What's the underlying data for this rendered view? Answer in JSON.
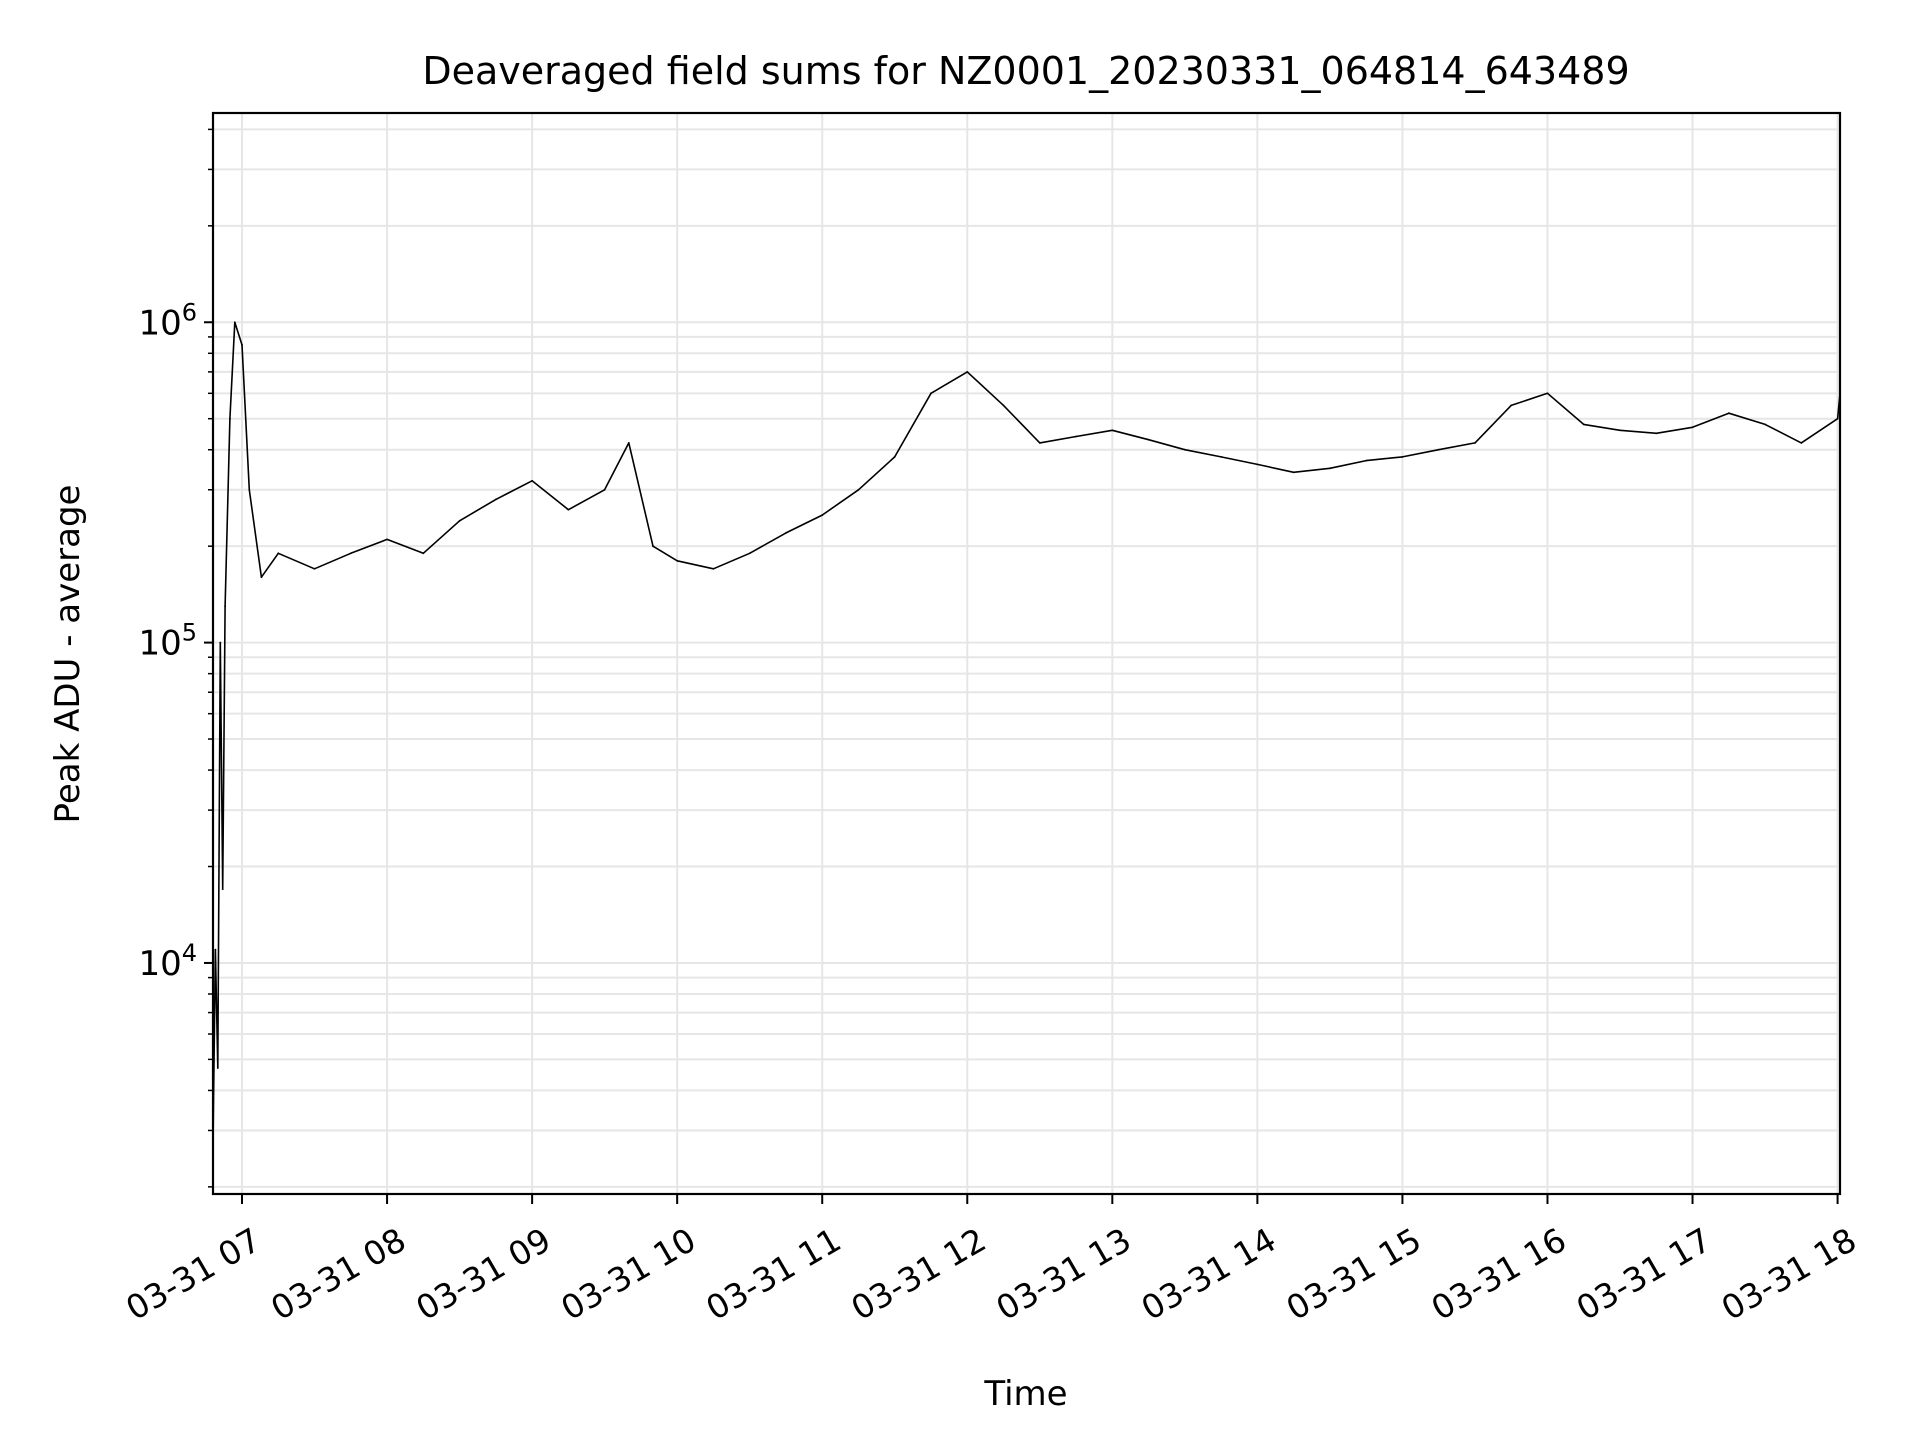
{
  "chart_data": {
    "type": "line",
    "title": "Deaveraged field sums for NZ0001_20230331_064814_643489",
    "xlabel": "Time",
    "ylabel": "Peak ADU - average",
    "y_scale": "log",
    "ylim": [
      1900,
      4500000
    ],
    "xlim": [
      "2023-03-31 06:48",
      "2023-03-31 18:01"
    ],
    "grid": true,
    "line_color": "#000000",
    "grid_color": "#e6e6e6",
    "x_ticks": [
      {
        "value": "2023-03-31 07:00",
        "label": "03-31 07"
      },
      {
        "value": "2023-03-31 08:00",
        "label": "03-31 08"
      },
      {
        "value": "2023-03-31 09:00",
        "label": "03-31 09"
      },
      {
        "value": "2023-03-31 10:00",
        "label": "03-31 10"
      },
      {
        "value": "2023-03-31 11:00",
        "label": "03-31 11"
      },
      {
        "value": "2023-03-31 12:00",
        "label": "03-31 12"
      },
      {
        "value": "2023-03-31 13:00",
        "label": "03-31 13"
      },
      {
        "value": "2023-03-31 14:00",
        "label": "03-31 14"
      },
      {
        "value": "2023-03-31 15:00",
        "label": "03-31 15"
      },
      {
        "value": "2023-03-31 16:00",
        "label": "03-31 16"
      },
      {
        "value": "2023-03-31 17:00",
        "label": "03-31 17"
      },
      {
        "value": "2023-03-31 18:00",
        "label": "03-31 18"
      }
    ],
    "y_ticks": [
      {
        "value": 10000,
        "base": "10",
        "exp": "4"
      },
      {
        "value": 100000,
        "base": "10",
        "exp": "5"
      },
      {
        "value": 1000000,
        "base": "10",
        "exp": "6"
      }
    ],
    "series": [
      {
        "values": [
          [
            "2023-03-31 06:48",
            2700
          ],
          [
            "2023-03-31 06:49",
            11000
          ],
          [
            "2023-03-31 06:50",
            4700
          ],
          [
            "2023-03-31 06:51",
            100000
          ],
          [
            "2023-03-31 06:52",
            17000
          ],
          [
            "2023-03-31 06:53",
            130000
          ],
          [
            "2023-03-31 06:55",
            500000
          ],
          [
            "2023-03-31 06:57",
            1000000
          ],
          [
            "2023-03-31 07:00",
            850000
          ],
          [
            "2023-03-31 07:03",
            300000
          ],
          [
            "2023-03-31 07:08",
            160000
          ],
          [
            "2023-03-31 07:15",
            190000
          ],
          [
            "2023-03-31 07:30",
            170000
          ],
          [
            "2023-03-31 07:45",
            190000
          ],
          [
            "2023-03-31 08:00",
            210000
          ],
          [
            "2023-03-31 08:15",
            190000
          ],
          [
            "2023-03-31 08:30",
            240000
          ],
          [
            "2023-03-31 08:45",
            280000
          ],
          [
            "2023-03-31 09:00",
            320000
          ],
          [
            "2023-03-31 09:15",
            260000
          ],
          [
            "2023-03-31 09:30",
            300000
          ],
          [
            "2023-03-31 09:40",
            420000
          ],
          [
            "2023-03-31 09:50",
            200000
          ],
          [
            "2023-03-31 10:00",
            180000
          ],
          [
            "2023-03-31 10:15",
            170000
          ],
          [
            "2023-03-31 10:30",
            190000
          ],
          [
            "2023-03-31 10:45",
            220000
          ],
          [
            "2023-03-31 11:00",
            250000
          ],
          [
            "2023-03-31 11:15",
            300000
          ],
          [
            "2023-03-31 11:30",
            380000
          ],
          [
            "2023-03-31 11:45",
            600000
          ],
          [
            "2023-03-31 12:00",
            700000
          ],
          [
            "2023-03-31 12:15",
            550000
          ],
          [
            "2023-03-31 12:30",
            420000
          ],
          [
            "2023-03-31 12:45",
            440000
          ],
          [
            "2023-03-31 13:00",
            460000
          ],
          [
            "2023-03-31 13:15",
            430000
          ],
          [
            "2023-03-31 13:30",
            400000
          ],
          [
            "2023-03-31 13:45",
            380000
          ],
          [
            "2023-03-31 14:00",
            360000
          ],
          [
            "2023-03-31 14:15",
            340000
          ],
          [
            "2023-03-31 14:30",
            350000
          ],
          [
            "2023-03-31 14:45",
            370000
          ],
          [
            "2023-03-31 15:00",
            380000
          ],
          [
            "2023-03-31 15:15",
            400000
          ],
          [
            "2023-03-31 15:30",
            420000
          ],
          [
            "2023-03-31 15:45",
            550000
          ],
          [
            "2023-03-31 16:00",
            600000
          ],
          [
            "2023-03-31 16:15",
            480000
          ],
          [
            "2023-03-31 16:30",
            460000
          ],
          [
            "2023-03-31 16:45",
            450000
          ],
          [
            "2023-03-31 17:00",
            470000
          ],
          [
            "2023-03-31 17:15",
            520000
          ],
          [
            "2023-03-31 17:30",
            480000
          ],
          [
            "2023-03-31 17:45",
            420000
          ],
          [
            "2023-03-31 18:00",
            500000
          ],
          [
            "2023-03-31 18:01",
            600000
          ]
        ]
      }
    ]
  }
}
